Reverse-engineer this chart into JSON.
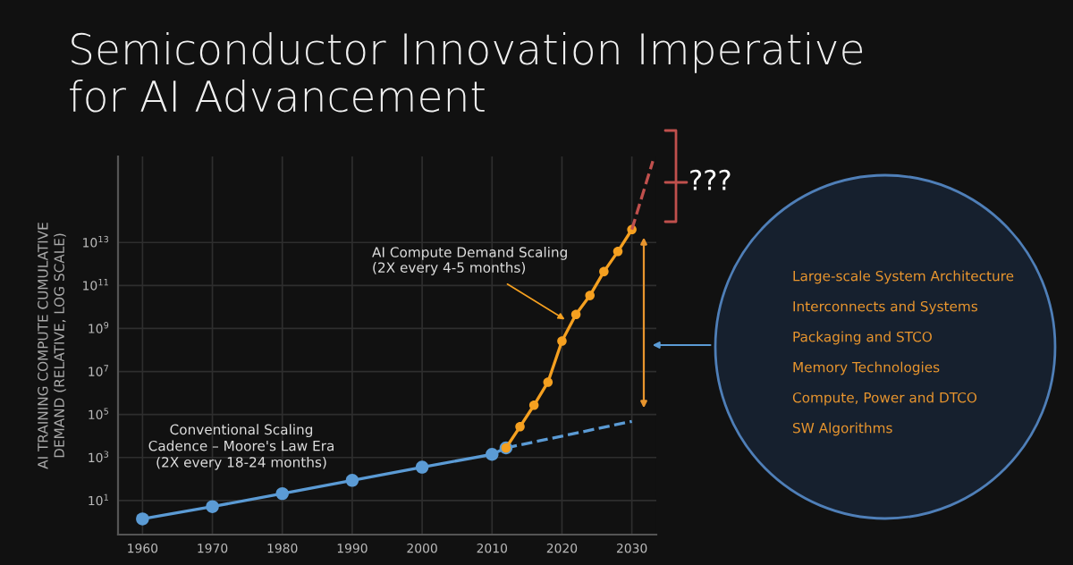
{
  "chart_data": {
    "type": "line",
    "title": "Semiconductor Innovation Imperative\nfor AI Advancement",
    "ylabel": "AI TRAINING COMPUTE CUMULATIVE\nDEMAND (RELATIVE, LOG SCALE)",
    "log": "y",
    "grid": true,
    "xlim": [
      1956.5,
      2033.5
    ],
    "xticks": [
      1960,
      1970,
      1980,
      1990,
      2000,
      2010,
      2020,
      2030
    ],
    "ylim": [
      0.26,
      1e+17
    ],
    "yticks": [
      {
        "value": 10,
        "label": "10$^{1}$"
      },
      {
        "value": 1000,
        "label": "10$^{3}$"
      },
      {
        "value": 100000,
        "label": "10$^{5}$"
      },
      {
        "value": 10000000,
        "label": "10$^{7}$"
      },
      {
        "value": 1000000000,
        "label": "10$^{9}$"
      },
      {
        "value": 100000000000,
        "label": "10$^{11}$"
      },
      {
        "value": 10000000000000,
        "label": "10$^{13}$"
      }
    ],
    "series": [
      {
        "color": "#5b9bd5",
        "line_style": "solid",
        "marker": "circle",
        "x": [
          1960,
          1970,
          1980,
          1990,
          2000,
          2010,
          2012
        ],
        "values": [
          1.4,
          5.2,
          21,
          87,
          355,
          1400,
          2800
        ]
      },
      {
        "color": "#5b9bd5",
        "line_style": "dashed",
        "marker": "none",
        "x": [
          2012,
          2030
        ],
        "values": [
          2800,
          48000
        ]
      },
      {
        "color": "#f5a020",
        "line_style": "solid",
        "marker": "circle",
        "x": [
          2012,
          2014,
          2016,
          2018,
          2020,
          2022,
          2024,
          2026,
          2028,
          2030
        ],
        "values": [
          2800,
          27000,
          270000,
          3200000,
          260000000,
          4500000000,
          34000000000,
          440000000000,
          3800000000000,
          40000000000000
        ]
      },
      {
        "color": "#c0504d",
        "line_style": "dashed",
        "marker": "none",
        "x": [
          2030,
          2033
        ],
        "values": [
          40000000000000,
          60000000000000000
        ]
      }
    ],
    "annotations": [
      {
        "text": "AI Compute Demand Scaling\n(2X every 4-5 months)",
        "x": 2021,
        "y": 2000000000
      },
      "Conventional Scaling\nCadence – Moore's Law Era\n(2X every 18-24 months)",
      "???",
      "Large-scale System Architecture",
      "Interconnects and Systems",
      "Packaging and STCO",
      "Memory Technologies",
      "Compute, Power and DTCO",
      "SW Algorithms"
    ]
  }
}
